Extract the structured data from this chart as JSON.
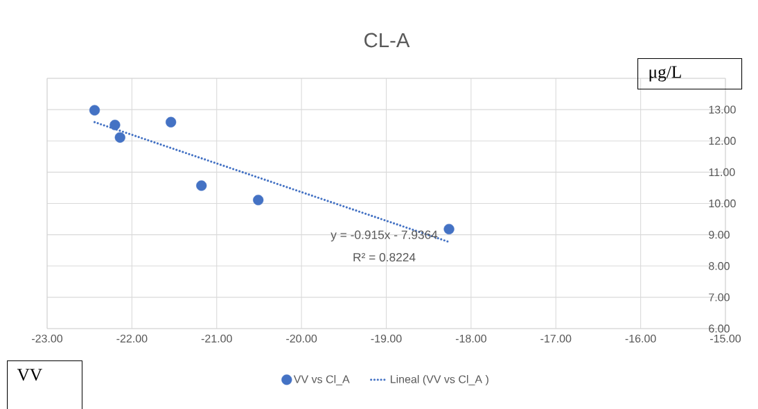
{
  "chart_data": {
    "type": "scatter",
    "title": "CL-A",
    "xlabel": "VV",
    "ylabel": "μg/L",
    "xlim": [
      -23,
      -15
    ],
    "xticks": [
      {
        "value": -23,
        "label": "-23.00"
      },
      {
        "value": -22,
        "label": "-22.00"
      },
      {
        "value": -21,
        "label": "-21.00"
      },
      {
        "value": -20,
        "label": "-20.00"
      },
      {
        "value": -19,
        "label": "-19.00"
      },
      {
        "value": -18,
        "label": "-18.00"
      },
      {
        "value": -17,
        "label": "-17.00"
      },
      {
        "value": -16,
        "label": "-16.00"
      },
      {
        "value": -15,
        "label": "-15.00"
      }
    ],
    "ylim": [
      6,
      14
    ],
    "yticks": [
      {
        "value": 6,
        "label": "6.00"
      },
      {
        "value": 7,
        "label": "7.00"
      },
      {
        "value": 8,
        "label": "8.00"
      },
      {
        "value": 9,
        "label": "9.00"
      },
      {
        "value": 10,
        "label": "10.00"
      },
      {
        "value": 11,
        "label": "11.00"
      },
      {
        "value": 12,
        "label": "12.00"
      },
      {
        "value": 13,
        "label": "13.00"
      },
      {
        "value": 14,
        "label": null
      }
    ],
    "grid": true,
    "legend": "bottom",
    "series": [
      {
        "name": "VV vs Cl_A",
        "marker": "circle",
        "color": "#4472c4",
        "x": [
          -22.44,
          -22.2,
          -22.14,
          -21.54,
          -21.18,
          -20.51,
          -18.26
        ],
        "values": [
          12.98,
          12.51,
          12.11,
          12.6,
          10.57,
          10.11,
          9.18
        ]
      },
      {
        "name": "Lineal (VV vs Cl_A )",
        "type": "line",
        "color": "#4472c4",
        "line_style": "dotted",
        "marker": "none",
        "x": [
          -22.44,
          -18.26
        ],
        "values": [
          12.6,
          8.77
        ]
      }
    ],
    "annotations": [
      "y = -0.915x - 7.9364",
      "R² = 0.8224"
    ]
  }
}
